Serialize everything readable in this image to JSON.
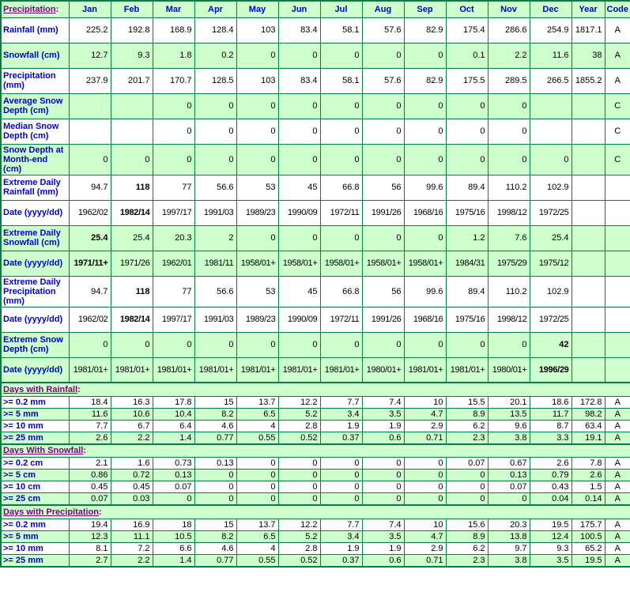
{
  "colors": {
    "border": "#0b7b45",
    "row_green": "#ccffcc",
    "row_white": "#ffffff",
    "label_blue": "#0000cc",
    "heading_purple": "#800080",
    "data_black": "#000000"
  },
  "chart_data": {
    "type": "table",
    "corner_title": "Precipitation",
    "colon": ":",
    "columns": [
      "Jan",
      "Feb",
      "Mar",
      "Apr",
      "May",
      "Jun",
      "Jul",
      "Aug",
      "Sep",
      "Oct",
      "Nov",
      "Dec",
      "Year",
      "Code"
    ],
    "sections": [
      {
        "title": "",
        "rows": [
          {
            "label": "Rainfall (mm)",
            "bg": "white",
            "bold": [],
            "values": [
              "225.2",
              "192.8",
              "168.9",
              "128.4",
              "103",
              "83.4",
              "58.1",
              "57.6",
              "82.9",
              "175.4",
              "286.6",
              "254.9",
              "1817.1",
              "A"
            ]
          },
          {
            "label": "Snowfall (cm)",
            "bg": "green",
            "bold": [],
            "values": [
              "12.7",
              "9.3",
              "1.8",
              "0.2",
              "0",
              "0",
              "0",
              "0",
              "0",
              "0.1",
              "2.2",
              "11.6",
              "38",
              "A"
            ]
          },
          {
            "label": "Precipitation (mm)",
            "bg": "white",
            "bold": [],
            "values": [
              "237.9",
              "201.7",
              "170.7",
              "128.5",
              "103",
              "83.4",
              "58.1",
              "57.6",
              "82.9",
              "175.5",
              "289.5",
              "266.5",
              "1855.2",
              "A"
            ]
          },
          {
            "label": "Average Snow Depth (cm)",
            "bg": "green",
            "bold": [],
            "values": [
              "",
              "",
              "0",
              "0",
              "0",
              "0",
              "0",
              "0",
              "0",
              "0",
              "0",
              "",
              "",
              "C"
            ]
          },
          {
            "label": "Median Snow Depth (cm)",
            "bg": "white",
            "bold": [],
            "values": [
              "",
              "",
              "0",
              "0",
              "0",
              "0",
              "0",
              "0",
              "0",
              "0",
              "0",
              "",
              "",
              "C"
            ]
          },
          {
            "label": "Snow Depth at Month-end (cm)",
            "bg": "green",
            "bold": [],
            "values": [
              "0",
              "0",
              "0",
              "0",
              "0",
              "0",
              "0",
              "0",
              "0",
              "0",
              "0",
              "0",
              "",
              "C"
            ]
          },
          {
            "label": "Extreme Daily Rainfall (mm)",
            "bg": "white",
            "bold": [
              1
            ],
            "values": [
              "94.7",
              "118",
              "77",
              "56.6",
              "53",
              "45",
              "66.8",
              "56",
              "99.6",
              "89.4",
              "110.2",
              "102.9",
              "",
              ""
            ]
          },
          {
            "label": "Date (yyyy/dd)",
            "bg": "white",
            "bold": [
              1
            ],
            "values": [
              "1962/02",
              "1982/14",
              "1997/17",
              "1991/03",
              "1989/23",
              "1990/09",
              "1972/11",
              "1991/26",
              "1968/16",
              "1975/16",
              "1998/12",
              "1972/25",
              "",
              ""
            ]
          },
          {
            "label": "Extreme Daily Snowfall (cm)",
            "bg": "green",
            "bold": [
              0
            ],
            "values": [
              "25.4",
              "25.4",
              "20.3",
              "2",
              "0",
              "0",
              "0",
              "0",
              "0",
              "1.2",
              "7.6",
              "25.4",
              "",
              ""
            ]
          },
          {
            "label": "Date (yyyy/dd)",
            "bg": "green",
            "bold": [
              0
            ],
            "values": [
              "1971/11+",
              "1971/26",
              "1962/01",
              "1981/11",
              "1958/01+",
              "1958/01+",
              "1958/01+",
              "1958/01+",
              "1958/01+",
              "1984/31",
              "1975/29",
              "1975/12",
              "",
              ""
            ]
          },
          {
            "label": "Extreme Daily Precipitation (mm)",
            "bg": "white",
            "bold": [
              1
            ],
            "values": [
              "94.7",
              "118",
              "77",
              "56.6",
              "53",
              "45",
              "66.8",
              "56",
              "99.6",
              "89.4",
              "110.2",
              "102.9",
              "",
              ""
            ]
          },
          {
            "label": "Date (yyyy/dd)",
            "bg": "white",
            "bold": [
              1
            ],
            "values": [
              "1962/02",
              "1982/14",
              "1997/17",
              "1991/03",
              "1989/23",
              "1990/09",
              "1972/11",
              "1991/26",
              "1968/16",
              "1975/16",
              "1998/12",
              "1972/25",
              "",
              ""
            ]
          },
          {
            "label": "Extreme Snow Depth (cm)",
            "bg": "green",
            "bold": [
              11
            ],
            "values": [
              "0",
              "0",
              "0",
              "0",
              "0",
              "0",
              "0",
              "0",
              "0",
              "0",
              "0",
              "42",
              "",
              ""
            ]
          },
          {
            "label": "Date (yyyy/dd)",
            "bg": "green",
            "bold": [
              11
            ],
            "values": [
              "1981/01+",
              "1981/01+",
              "1981/01+",
              "1981/01+",
              "1981/01+",
              "1981/01+",
              "1981/01+",
              "1980/01+",
              "1981/01+",
              "1981/01+",
              "1980/01+",
              "1996/29",
              "",
              ""
            ]
          }
        ]
      },
      {
        "title": "Days with Rainfall",
        "rows": [
          {
            "label": ">= 0.2 mm",
            "bg": "white",
            "bold": [],
            "values": [
              "18.4",
              "16.3",
              "17.8",
              "15",
              "13.7",
              "12.2",
              "7.7",
              "7.4",
              "10",
              "15.5",
              "20.1",
              "18.6",
              "172.8",
              "A"
            ]
          },
          {
            "label": ">= 5 mm",
            "bg": "green",
            "bold": [],
            "values": [
              "11.6",
              "10.6",
              "10.4",
              "8.2",
              "6.5",
              "5.2",
              "3.4",
              "3.5",
              "4.7",
              "8.9",
              "13.5",
              "11.7",
              "98.2",
              "A"
            ]
          },
          {
            "label": ">= 10 mm",
            "bg": "white",
            "bold": [],
            "values": [
              "7.7",
              "6.7",
              "6.4",
              "4.6",
              "4",
              "2.8",
              "1.9",
              "1.9",
              "2.9",
              "6.2",
              "9.6",
              "8.7",
              "63.4",
              "A"
            ]
          },
          {
            "label": ">= 25 mm",
            "bg": "green",
            "bold": [],
            "values": [
              "2.6",
              "2.2",
              "1.4",
              "0.77",
              "0.55",
              "0.52",
              "0.37",
              "0.6",
              "0.71",
              "2.3",
              "3.8",
              "3.3",
              "19.1",
              "A"
            ]
          }
        ]
      },
      {
        "title": "Days With Snowfall",
        "rows": [
          {
            "label": ">= 0.2 cm",
            "bg": "white",
            "bold": [],
            "values": [
              "2.1",
              "1.6",
              "0.73",
              "0.13",
              "0",
              "0",
              "0",
              "0",
              "0",
              "0.07",
              "0.67",
              "2.6",
              "7.8",
              "A"
            ]
          },
          {
            "label": ">= 5 cm",
            "bg": "green",
            "bold": [],
            "values": [
              "0.86",
              "0.72",
              "0.13",
              "0",
              "0",
              "0",
              "0",
              "0",
              "0",
              "0",
              "0.13",
              "0.79",
              "2.6",
              "A"
            ]
          },
          {
            "label": ">= 10 cm",
            "bg": "white",
            "bold": [],
            "values": [
              "0.45",
              "0.45",
              "0.07",
              "0",
              "0",
              "0",
              "0",
              "0",
              "0",
              "0",
              "0.07",
              "0.43",
              "1.5",
              "A"
            ]
          },
          {
            "label": ">= 25 cm",
            "bg": "green",
            "bold": [],
            "values": [
              "0.07",
              "0.03",
              "0",
              "0",
              "0",
              "0",
              "0",
              "0",
              "0",
              "0",
              "0",
              "0.04",
              "0.14",
              "A"
            ]
          }
        ]
      },
      {
        "title": "Days with Precipitation",
        "rows": [
          {
            "label": ">= 0.2 mm",
            "bg": "white",
            "bold": [],
            "values": [
              "19.4",
              "16.9",
              "18",
              "15",
              "13.7",
              "12.2",
              "7.7",
              "7.4",
              "10",
              "15.6",
              "20.3",
              "19.5",
              "175.7",
              "A"
            ]
          },
          {
            "label": ">= 5 mm",
            "bg": "green",
            "bold": [],
            "values": [
              "12.3",
              "11.1",
              "10.5",
              "8.2",
              "6.5",
              "5.2",
              "3.4",
              "3.5",
              "4.7",
              "8.9",
              "13.8",
              "12.4",
              "100.5",
              "A"
            ]
          },
          {
            "label": ">= 10 mm",
            "bg": "white",
            "bold": [],
            "values": [
              "8.1",
              "7.2",
              "6.6",
              "4.6",
              "4",
              "2.8",
              "1.9",
              "1.9",
              "2.9",
              "6.2",
              "9.7",
              "9.3",
              "65.2",
              "A"
            ]
          },
          {
            "label": ">= 25 mm",
            "bg": "green",
            "bold": [],
            "values": [
              "2.7",
              "2.2",
              "1.4",
              "0.77",
              "0.55",
              "0.52",
              "0.37",
              "0.6",
              "0.71",
              "2.3",
              "3.8",
              "3.5",
              "19.5",
              "A"
            ]
          }
        ]
      }
    ]
  }
}
